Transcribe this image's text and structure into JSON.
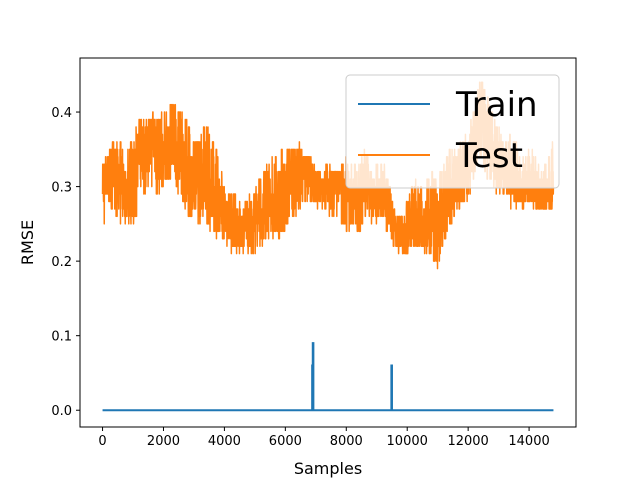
{
  "chart_data": {
    "type": "line",
    "title": "",
    "xlabel": "Samples",
    "ylabel": "RMSE",
    "xlim": [
      -740,
      15540
    ],
    "ylim": [
      -0.0225,
      0.4725
    ],
    "xticks": [
      0,
      2000,
      4000,
      6000,
      8000,
      10000,
      12000,
      14000
    ],
    "yticks": [
      0.0,
      0.1,
      0.2,
      0.3,
      0.4
    ],
    "xtick_labels": [
      "0",
      "2000",
      "4000",
      "6000",
      "8000",
      "10000",
      "12000",
      "14000"
    ],
    "ytick_labels": [
      "0.0",
      "0.1",
      "0.2",
      "0.3",
      "0.4"
    ],
    "grid": false,
    "legend": {
      "placement": "upper-right"
    },
    "series": [
      {
        "name": "Train",
        "color": "#1f77b4",
        "x": [
          0,
          6880,
          6880,
          6900,
          6900,
          6920,
          6920,
          9480,
          9480,
          9500,
          9500,
          14800
        ],
        "y": [
          0.0,
          0.0,
          0.06,
          0.06,
          0.09,
          0.09,
          0.0,
          0.0,
          0.06,
          0.06,
          0.0,
          0.0
        ]
      },
      {
        "name": "Test",
        "color": "#ff7f0e",
        "x": [
          0,
          200,
          400,
          600,
          800,
          1000,
          1200,
          1400,
          1600,
          1800,
          2000,
          2200,
          2400,
          2600,
          2800,
          3000,
          3200,
          3400,
          3600,
          3800,
          4000,
          4200,
          4400,
          4600,
          4800,
          5000,
          5200,
          5400,
          5600,
          5800,
          6000,
          6200,
          6400,
          6600,
          6800,
          7000,
          7200,
          7400,
          7600,
          7800,
          8000,
          8200,
          8400,
          8600,
          8800,
          9000,
          9200,
          9400,
          9600,
          9800,
          10000,
          10200,
          10400,
          10600,
          10800,
          11000,
          11200,
          11400,
          11600,
          11800,
          12000,
          12200,
          12400,
          12600,
          12800,
          13000,
          13200,
          13400,
          13600,
          13800,
          14000,
          14200,
          14400,
          14600,
          14800
        ],
        "y_mid": [
          0.3,
          0.32,
          0.33,
          0.3,
          0.29,
          0.32,
          0.34,
          0.35,
          0.36,
          0.34,
          0.35,
          0.36,
          0.36,
          0.34,
          0.31,
          0.3,
          0.31,
          0.32,
          0.3,
          0.28,
          0.26,
          0.25,
          0.24,
          0.24,
          0.25,
          0.26,
          0.27,
          0.28,
          0.28,
          0.28,
          0.29,
          0.3,
          0.31,
          0.32,
          0.31,
          0.3,
          0.3,
          0.3,
          0.3,
          0.3,
          0.29,
          0.28,
          0.28,
          0.3,
          0.29,
          0.28,
          0.3,
          0.27,
          0.24,
          0.23,
          0.23,
          0.26,
          0.25,
          0.25,
          0.26,
          0.25,
          0.28,
          0.3,
          0.3,
          0.31,
          0.33,
          0.37,
          0.39,
          0.37,
          0.35,
          0.33,
          0.33,
          0.32,
          0.31,
          0.3,
          0.31,
          0.3,
          0.29,
          0.29,
          0.3
        ],
        "y_min": [
          0.23,
          0.28,
          0.26,
          0.25,
          0.25,
          0.25,
          0.27,
          0.29,
          0.3,
          0.28,
          0.3,
          0.31,
          0.3,
          0.28,
          0.26,
          0.25,
          0.25,
          0.25,
          0.23,
          0.23,
          0.22,
          0.21,
          0.21,
          0.21,
          0.21,
          0.21,
          0.22,
          0.23,
          0.23,
          0.23,
          0.24,
          0.26,
          0.26,
          0.28,
          0.27,
          0.27,
          0.27,
          0.26,
          0.26,
          0.25,
          0.24,
          0.23,
          0.23,
          0.26,
          0.25,
          0.25,
          0.26,
          0.23,
          0.21,
          0.21,
          0.21,
          0.22,
          0.21,
          0.21,
          0.21,
          0.19,
          0.22,
          0.25,
          0.26,
          0.27,
          0.28,
          0.31,
          0.34,
          0.31,
          0.3,
          0.29,
          0.29,
          0.27,
          0.27,
          0.27,
          0.27,
          0.27,
          0.27,
          0.27,
          0.27
        ],
        "y_max": [
          0.33,
          0.35,
          0.36,
          0.36,
          0.35,
          0.37,
          0.39,
          0.39,
          0.4,
          0.39,
          0.4,
          0.41,
          0.41,
          0.4,
          0.39,
          0.36,
          0.37,
          0.39,
          0.37,
          0.34,
          0.3,
          0.29,
          0.29,
          0.28,
          0.29,
          0.3,
          0.32,
          0.33,
          0.34,
          0.35,
          0.36,
          0.35,
          0.36,
          0.35,
          0.34,
          0.33,
          0.32,
          0.33,
          0.32,
          0.33,
          0.34,
          0.33,
          0.33,
          0.35,
          0.33,
          0.33,
          0.34,
          0.31,
          0.27,
          0.26,
          0.28,
          0.31,
          0.3,
          0.31,
          0.32,
          0.31,
          0.33,
          0.35,
          0.35,
          0.36,
          0.38,
          0.41,
          0.45,
          0.43,
          0.4,
          0.38,
          0.37,
          0.37,
          0.36,
          0.34,
          0.35,
          0.35,
          0.32,
          0.34,
          0.36
        ]
      }
    ]
  }
}
